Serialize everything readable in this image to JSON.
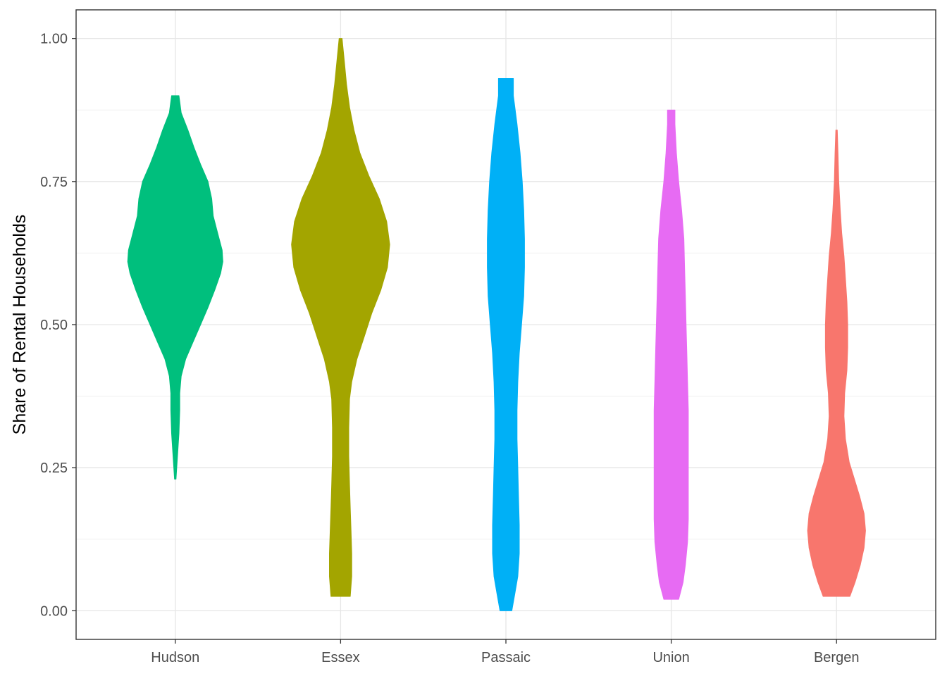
{
  "chart_data": {
    "type": "violin",
    "title": "",
    "xlabel": "",
    "ylabel": "Share of Rental Households",
    "ylim": [
      -0.05,
      1.05
    ],
    "yticks": [
      "0.00",
      "0.25",
      "0.50",
      "0.75",
      "1.00"
    ],
    "grid": true,
    "legend": "none",
    "categories": [
      "Hudson",
      "Essex",
      "Passaic",
      "Union",
      "Bergen"
    ],
    "colors": [
      "#00BF7D",
      "#A3A500",
      "#00B0F6",
      "#E76BF3",
      "#F8766D"
    ],
    "series": [
      {
        "category": "Hudson",
        "color": "#00BF7D",
        "min": 0.23,
        "max": 0.9,
        "profile": [
          [
            0.23,
            0.01
          ],
          [
            0.27,
            0.03
          ],
          [
            0.31,
            0.05
          ],
          [
            0.35,
            0.06
          ],
          [
            0.38,
            0.06
          ],
          [
            0.41,
            0.08
          ],
          [
            0.44,
            0.14
          ],
          [
            0.47,
            0.24
          ],
          [
            0.5,
            0.34
          ],
          [
            0.53,
            0.44
          ],
          [
            0.56,
            0.53
          ],
          [
            0.59,
            0.61
          ],
          [
            0.61,
            0.64
          ],
          [
            0.63,
            0.63
          ],
          [
            0.66,
            0.57
          ],
          [
            0.69,
            0.51
          ],
          [
            0.72,
            0.49
          ],
          [
            0.75,
            0.44
          ],
          [
            0.78,
            0.34
          ],
          [
            0.81,
            0.25
          ],
          [
            0.84,
            0.17
          ],
          [
            0.87,
            0.08
          ],
          [
            0.9,
            0.05
          ]
        ]
      },
      {
        "category": "Essex",
        "color": "#A3A500",
        "min": 0.025,
        "max": 1.0,
        "profile": [
          [
            0.025,
            0.13
          ],
          [
            0.06,
            0.15
          ],
          [
            0.1,
            0.15
          ],
          [
            0.14,
            0.14
          ],
          [
            0.18,
            0.13
          ],
          [
            0.22,
            0.12
          ],
          [
            0.27,
            0.11
          ],
          [
            0.32,
            0.11
          ],
          [
            0.37,
            0.12
          ],
          [
            0.4,
            0.15
          ],
          [
            0.44,
            0.22
          ],
          [
            0.48,
            0.32
          ],
          [
            0.52,
            0.42
          ],
          [
            0.56,
            0.54
          ],
          [
            0.6,
            0.63
          ],
          [
            0.64,
            0.66
          ],
          [
            0.68,
            0.62
          ],
          [
            0.72,
            0.52
          ],
          [
            0.76,
            0.38
          ],
          [
            0.8,
            0.26
          ],
          [
            0.84,
            0.18
          ],
          [
            0.88,
            0.12
          ],
          [
            0.92,
            0.08
          ],
          [
            0.96,
            0.05
          ],
          [
            1.0,
            0.02
          ]
        ]
      },
      {
        "category": "Passaic",
        "color": "#00B0F6",
        "min": 0.0,
        "max": 0.93,
        "profile": [
          [
            0.0,
            0.08
          ],
          [
            0.03,
            0.12
          ],
          [
            0.06,
            0.16
          ],
          [
            0.1,
            0.18
          ],
          [
            0.15,
            0.18
          ],
          [
            0.2,
            0.17
          ],
          [
            0.25,
            0.16
          ],
          [
            0.3,
            0.15
          ],
          [
            0.35,
            0.15
          ],
          [
            0.4,
            0.16
          ],
          [
            0.45,
            0.18
          ],
          [
            0.5,
            0.21
          ],
          [
            0.55,
            0.24
          ],
          [
            0.6,
            0.25
          ],
          [
            0.65,
            0.25
          ],
          [
            0.7,
            0.24
          ],
          [
            0.75,
            0.22
          ],
          [
            0.8,
            0.19
          ],
          [
            0.85,
            0.15
          ],
          [
            0.9,
            0.1
          ],
          [
            0.93,
            0.1
          ]
        ]
      },
      {
        "category": "Union",
        "color": "#E76BF3",
        "min": 0.02,
        "max": 0.875,
        "profile": [
          [
            0.02,
            0.1
          ],
          [
            0.05,
            0.16
          ],
          [
            0.08,
            0.19
          ],
          [
            0.12,
            0.22
          ],
          [
            0.16,
            0.23
          ],
          [
            0.2,
            0.23
          ],
          [
            0.25,
            0.23
          ],
          [
            0.3,
            0.23
          ],
          [
            0.35,
            0.23
          ],
          [
            0.4,
            0.22
          ],
          [
            0.45,
            0.21
          ],
          [
            0.5,
            0.2
          ],
          [
            0.55,
            0.19
          ],
          [
            0.6,
            0.18
          ],
          [
            0.65,
            0.17
          ],
          [
            0.7,
            0.14
          ],
          [
            0.75,
            0.1
          ],
          [
            0.8,
            0.07
          ],
          [
            0.85,
            0.05
          ],
          [
            0.875,
            0.05
          ]
        ]
      },
      {
        "category": "Bergen",
        "color": "#F8766D",
        "min": 0.025,
        "max": 0.84,
        "profile": [
          [
            0.025,
            0.18
          ],
          [
            0.05,
            0.25
          ],
          [
            0.08,
            0.32
          ],
          [
            0.11,
            0.37
          ],
          [
            0.14,
            0.39
          ],
          [
            0.17,
            0.37
          ],
          [
            0.2,
            0.31
          ],
          [
            0.23,
            0.24
          ],
          [
            0.26,
            0.17
          ],
          [
            0.3,
            0.12
          ],
          [
            0.34,
            0.1
          ],
          [
            0.38,
            0.11
          ],
          [
            0.42,
            0.14
          ],
          [
            0.46,
            0.15
          ],
          [
            0.5,
            0.15
          ],
          [
            0.54,
            0.14
          ],
          [
            0.58,
            0.12
          ],
          [
            0.62,
            0.1
          ],
          [
            0.66,
            0.07
          ],
          [
            0.7,
            0.05
          ],
          [
            0.75,
            0.03
          ],
          [
            0.8,
            0.02
          ],
          [
            0.84,
            0.01
          ]
        ]
      }
    ]
  }
}
